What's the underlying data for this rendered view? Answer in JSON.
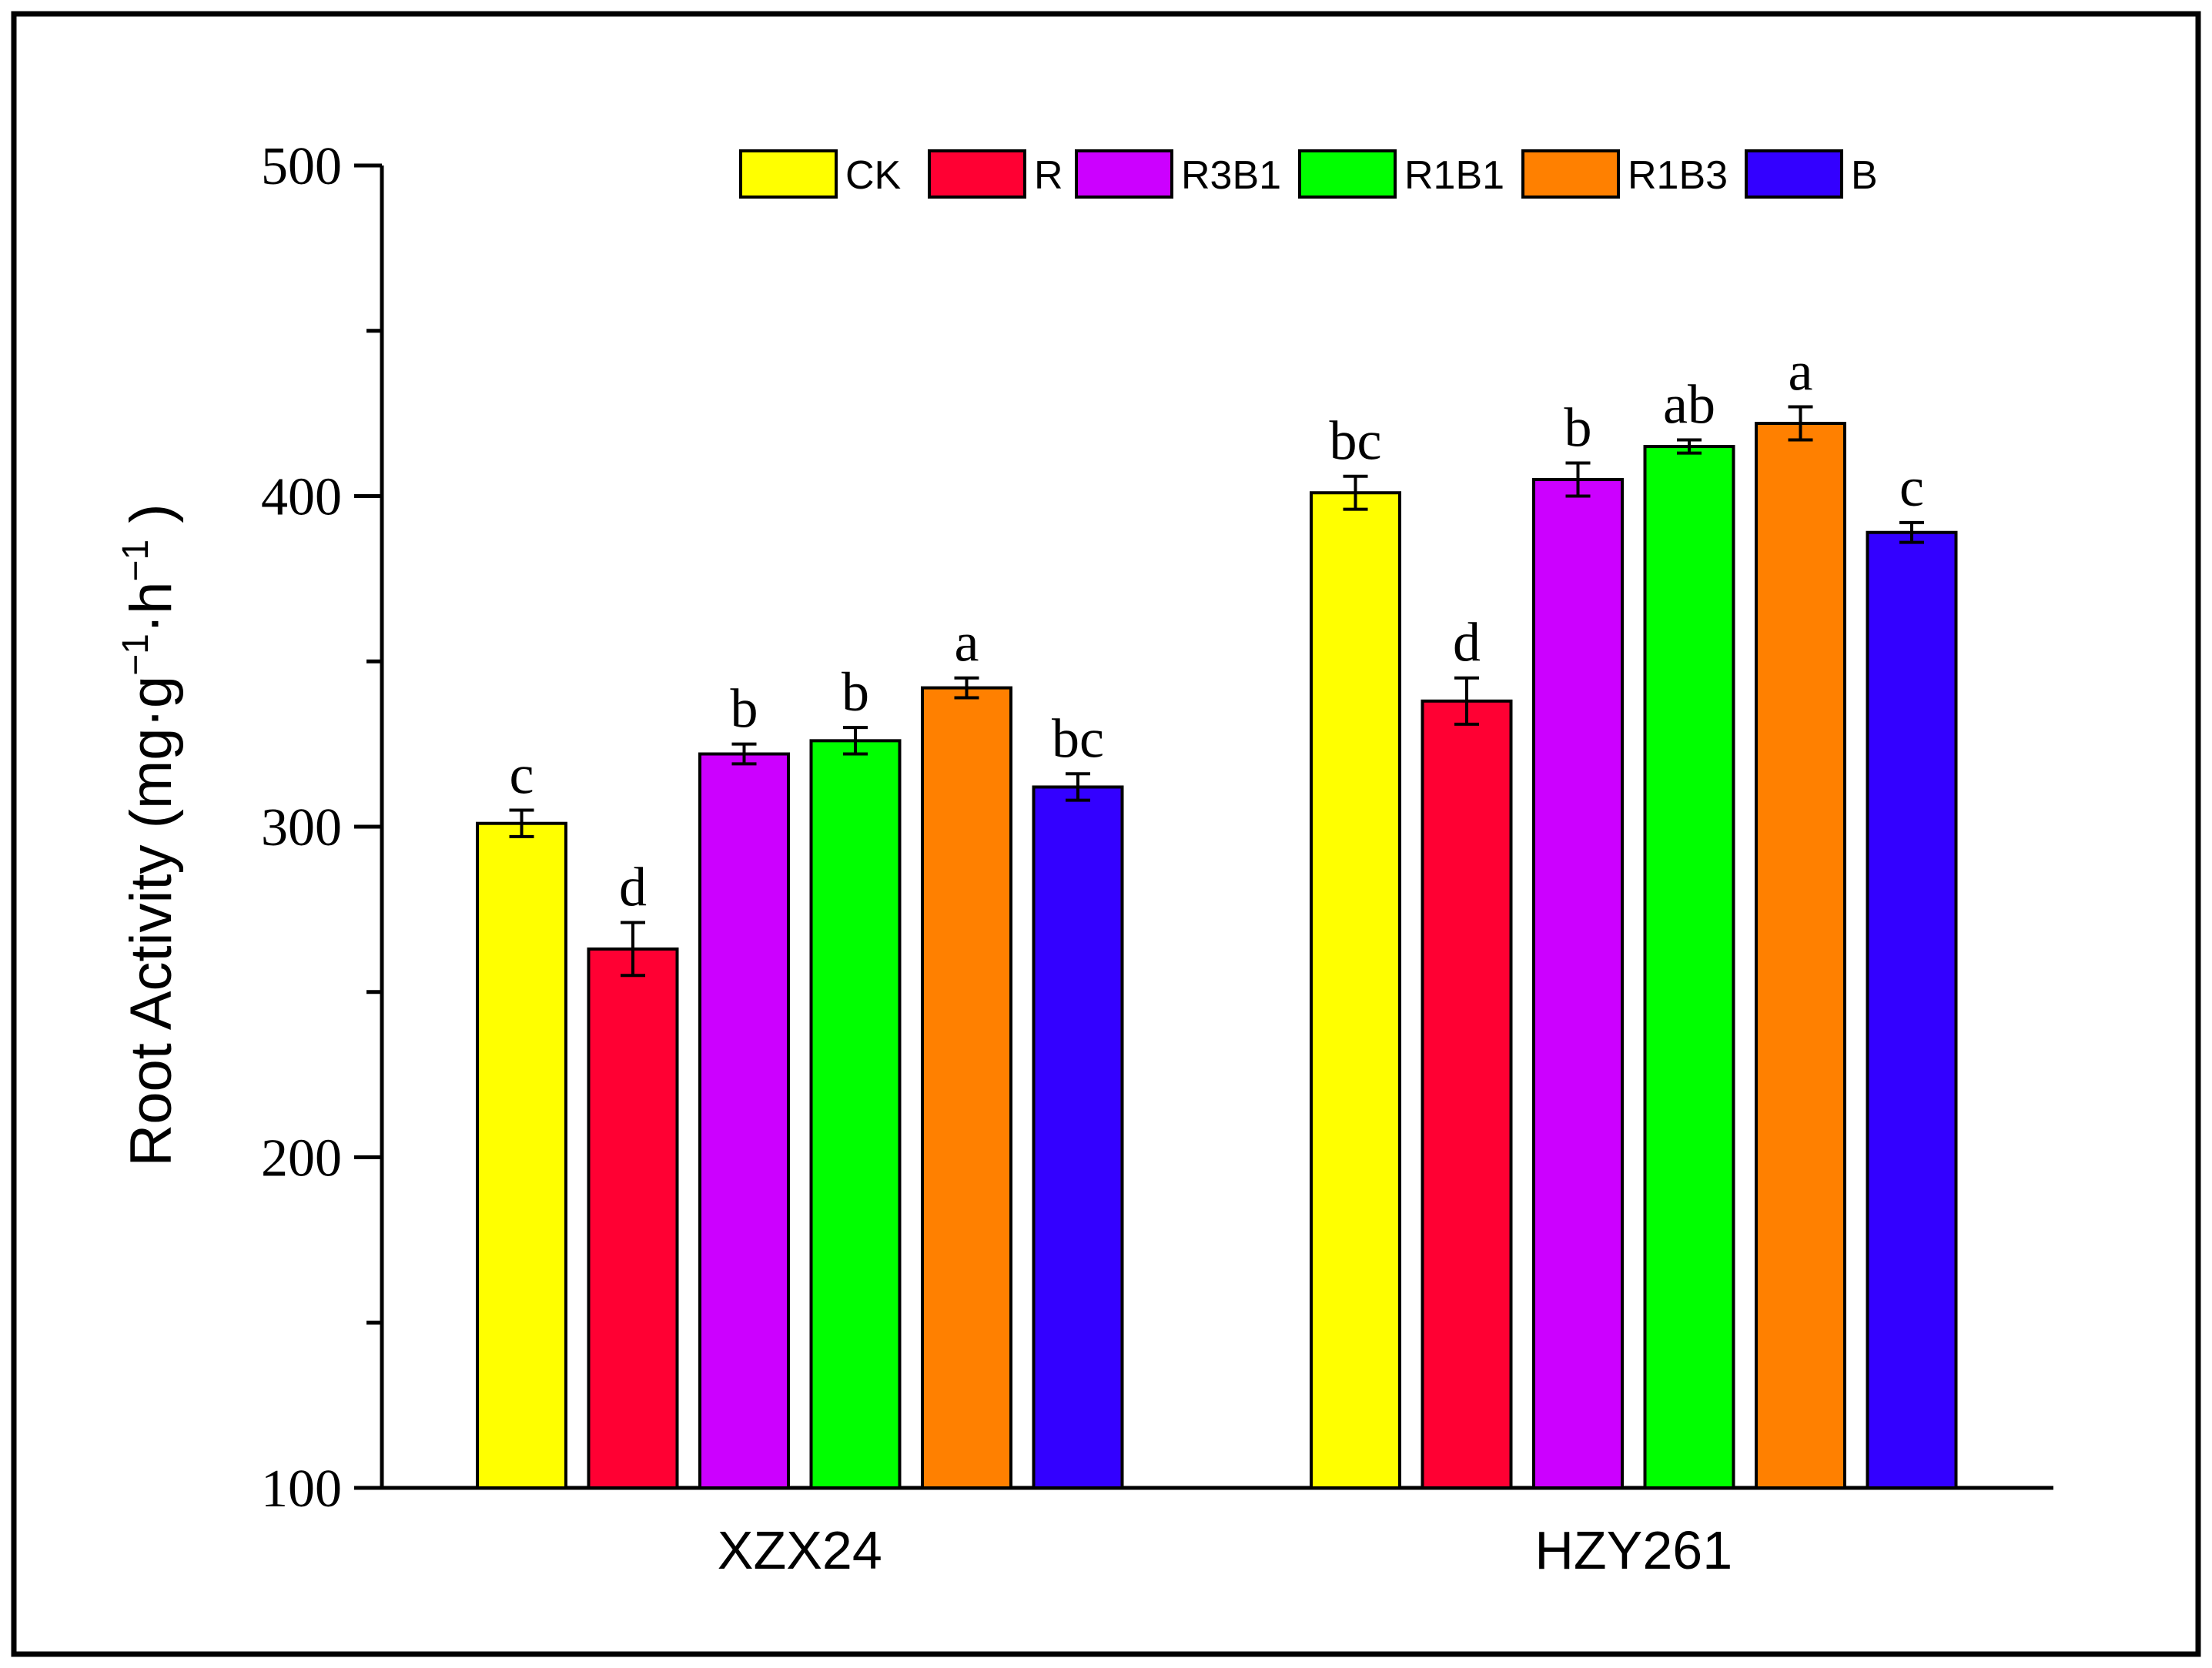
{
  "chart_data": {
    "type": "bar",
    "title": "",
    "xlabel": "",
    "ylabel": "Root Activity (mg·g⁻¹·h⁻¹ )",
    "ylabel_parts": {
      "prefix": "Root Activity (mg·g",
      "sup1": "−1",
      "mid": "·h",
      "sup2": "−1",
      "suffix": " )"
    },
    "ylim": [
      100,
      500
    ],
    "yticks": [
      100,
      200,
      300,
      400,
      500
    ],
    "ytick_labels": [
      "100",
      "200",
      "300",
      "400",
      "500"
    ],
    "categories": [
      "XZX24",
      "HZY261"
    ],
    "legend_position": "top",
    "series": [
      {
        "name": "CK",
        "color": "#ffff00",
        "values": [
          301,
          401
        ],
        "errors": [
          4,
          5
        ],
        "letters": [
          "c",
          "bc"
        ]
      },
      {
        "name": "R",
        "color": "#ff0033",
        "values": [
          263,
          338
        ],
        "errors": [
          8,
          7
        ],
        "letters": [
          "d",
          "d"
        ]
      },
      {
        "name": "R3B1",
        "color": "#cc00ff",
        "values": [
          322,
          405
        ],
        "errors": [
          3,
          5
        ],
        "letters": [
          "b",
          "b"
        ]
      },
      {
        "name": "R1B1",
        "color": "#00ff00",
        "values": [
          326,
          415
        ],
        "errors": [
          4,
          2
        ],
        "letters": [
          "b",
          "ab"
        ]
      },
      {
        "name": "R1B3",
        "color": "#ff8000",
        "values": [
          342,
          422
        ],
        "errors": [
          3,
          5
        ],
        "letters": [
          "a",
          "a"
        ]
      },
      {
        "name": "B",
        "color": "#3300ff",
        "values": [
          312,
          389
        ],
        "errors": [
          4,
          3
        ],
        "letters": [
          "bc",
          "c"
        ]
      }
    ]
  }
}
